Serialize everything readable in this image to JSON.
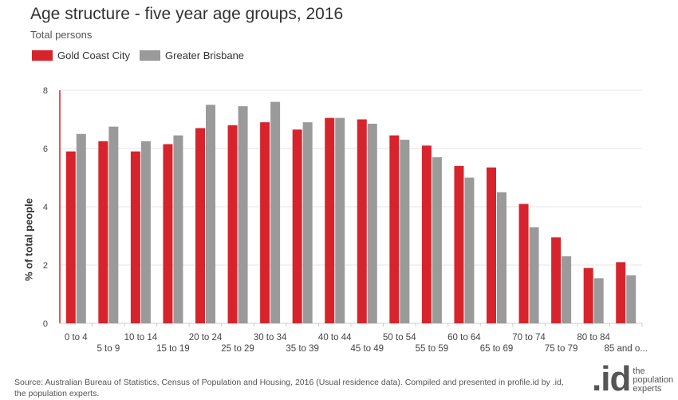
{
  "chart_data": {
    "type": "bar",
    "title": "Age structure - five year age groups, 2016",
    "subtitle": "Total persons",
    "ylabel": "% of total people",
    "xlabel": "",
    "ylim": [
      0,
      8
    ],
    "yticks": [
      0,
      2,
      4,
      6,
      8
    ],
    "grid": true,
    "legend_position": "top-left",
    "categories": [
      "0 to 4",
      "5 to 9",
      "10 to 14",
      "15 to 19",
      "20 to 24",
      "25 to 29",
      "30 to 34",
      "35 to 39",
      "40 to 44",
      "45 to 49",
      "50 to 54",
      "55 to 59",
      "60 to 64",
      "65 to 69",
      "70 to 74",
      "75 to 79",
      "80 to 84",
      "85 and o..."
    ],
    "series": [
      {
        "name": "Gold Coast City",
        "color": "#d7242c",
        "values": [
          5.9,
          6.25,
          5.9,
          6.15,
          6.7,
          6.8,
          6.9,
          6.65,
          7.05,
          7.0,
          6.45,
          6.1,
          5.4,
          5.35,
          4.1,
          2.95,
          1.9,
          2.1
        ]
      },
      {
        "name": "Greater Brisbane",
        "color": "#9a9a9a",
        "values": [
          6.5,
          6.75,
          6.25,
          6.45,
          7.5,
          7.45,
          7.6,
          6.9,
          7.05,
          6.85,
          6.3,
          5.7,
          5.0,
          4.5,
          3.3,
          2.3,
          1.55,
          1.65
        ]
      }
    ]
  },
  "source_text": "Source: Australian Bureau of Statistics, Census of Population and Housing, 2016 (Usual residence data). Compiled and presented in profile.id by .id, the population experts.",
  "logo": {
    "mark": ".id",
    "tagline": "the population experts"
  }
}
